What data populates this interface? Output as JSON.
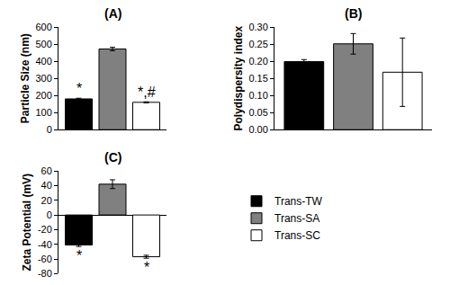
{
  "chart_data": [
    {
      "type": "bar",
      "title": "(A)",
      "y_label": "Particle Size (nm)",
      "categories": [
        null
      ],
      "tick_labels": "y",
      "ylim": [
        0,
        600
      ],
      "yticks": [
        0,
        100,
        200,
        300,
        400,
        500,
        600
      ],
      "series": [
        {
          "name": "Trans-TW",
          "color": "#000000",
          "values": [
            180
          ],
          "errors": [
            4
          ]
        },
        {
          "name": "Trans-SA",
          "color": "#808080",
          "values": [
            472
          ],
          "errors": [
            10
          ]
        },
        {
          "name": "Trans-SC",
          "color": "#ffffff",
          "values": [
            160
          ],
          "errors": [
            3
          ]
        }
      ],
      "annotations": [
        {
          "text": "*",
          "series": "Trans-TW"
        },
        {
          "text": "*,#",
          "series": "Trans-SC"
        }
      ]
    },
    {
      "type": "bar",
      "title": "(B)",
      "y_label": "Polydispersity index",
      "categories": [
        null
      ],
      "tick_labels": "y",
      "ylim": [
        0,
        0.3
      ],
      "yticks": [
        {
          "value": 0,
          "label": "0.00"
        },
        {
          "value": 0.05,
          "label": "0.05"
        },
        {
          "value": 0.1,
          "label": "0.10"
        },
        {
          "value": 0.15,
          "label": "0.15"
        },
        {
          "value": 0.2,
          "label": "0.20"
        },
        {
          "value": 0.25,
          "label": "0.25"
        },
        {
          "value": 0.3,
          "label": "0.30"
        }
      ],
      "series": [
        {
          "name": "Trans-TW",
          "color": "#000000",
          "values": [
            0.199
          ],
          "errors": [
            0.006
          ]
        },
        {
          "name": "Trans-SA",
          "color": "#808080",
          "values": [
            0.251
          ],
          "errors": [
            0.03
          ]
        },
        {
          "name": "Trans-SC",
          "color": "#ffffff",
          "values": [
            0.168
          ],
          "errors": [
            0.1
          ]
        }
      ],
      "annotations": []
    },
    {
      "type": "bar",
      "title": "(C)",
      "y_label": "Zeta Potential (mV)",
      "categories": [
        null
      ],
      "tick_labels": "y",
      "legend": "right",
      "ylim": [
        -80,
        60
      ],
      "yticks": [
        -80,
        -60,
        -40,
        -20,
        0,
        20,
        40,
        60
      ],
      "series": [
        {
          "name": "Trans-TW",
          "color": "#000000",
          "values": [
            -41
          ],
          "errors": [
            2
          ]
        },
        {
          "name": "Trans-SA",
          "color": "#808080",
          "values": [
            42
          ],
          "errors": [
            6
          ]
        },
        {
          "name": "Trans-SC",
          "color": "#ffffff",
          "values": [
            -57
          ],
          "errors": [
            2
          ]
        }
      ],
      "annotations": [
        {
          "text": "*",
          "series": "Trans-TW"
        },
        {
          "text": "*",
          "series": "Trans-SC"
        }
      ]
    }
  ]
}
